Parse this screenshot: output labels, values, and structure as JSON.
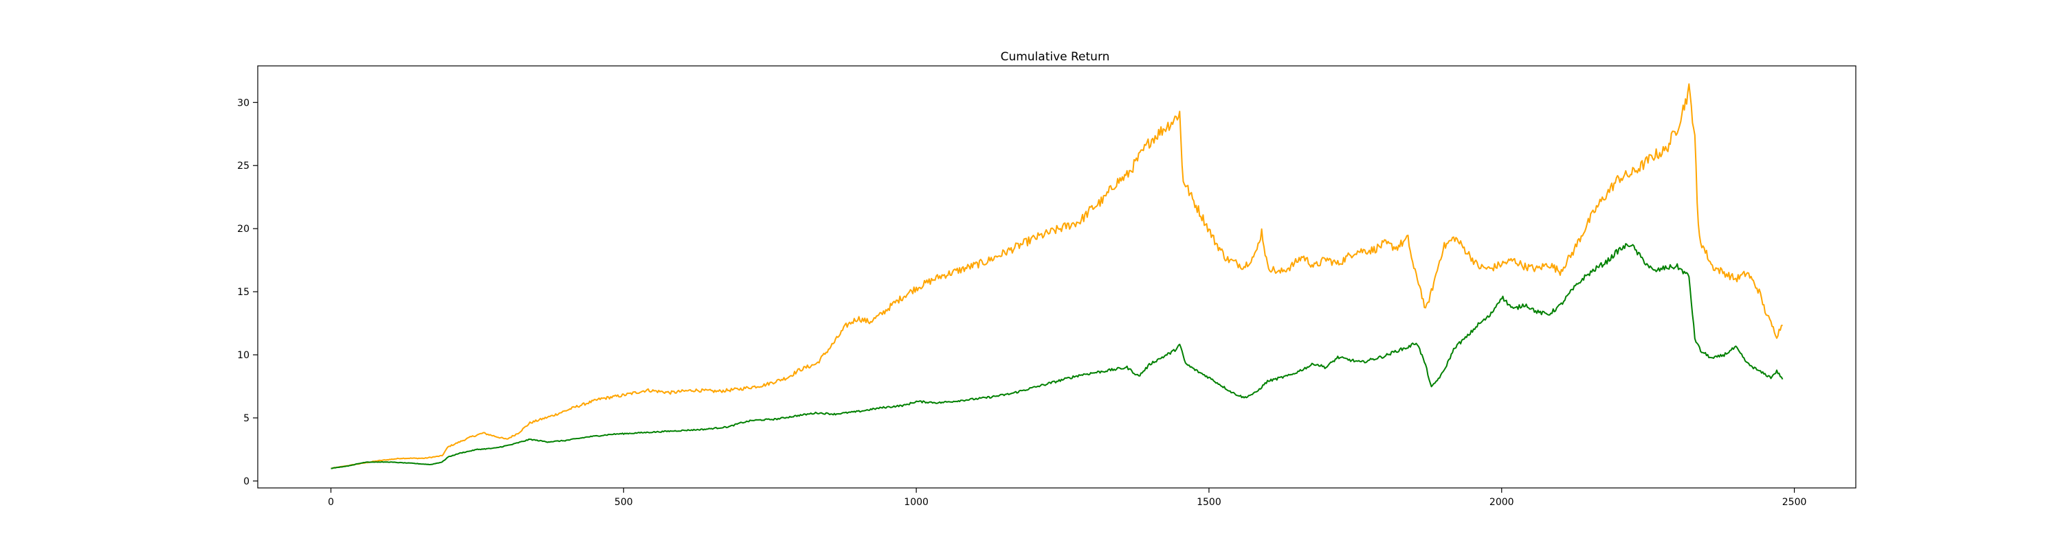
{
  "chart_data": {
    "type": "line",
    "title": "Cumulative Return",
    "xlabel": "",
    "ylabel": "",
    "xlim": [
      -125,
      2605
    ],
    "ylim": [
      -0.55,
      32.9
    ],
    "x_ticks": [
      0,
      500,
      1000,
      1500,
      2000,
      2500
    ],
    "x_tick_labels": [
      "0",
      "500",
      "1000",
      "1500",
      "2000",
      "2500"
    ],
    "y_ticks": [
      0,
      5,
      10,
      15,
      20,
      25,
      30
    ],
    "y_tick_labels": [
      "0",
      "5",
      "10",
      "15",
      "20",
      "25",
      "30"
    ],
    "grid": false,
    "legend": "none",
    "series": [
      {
        "color": "#ffa500",
        "x": [
          0,
          40,
          80,
          120,
          160,
          190,
          200,
          240,
          260,
          300,
          320,
          340,
          380,
          420,
          460,
          500,
          540,
          580,
          620,
          660,
          700,
          740,
          780,
          800,
          830,
          860,
          880,
          900,
          920,
          940,
          960,
          980,
          1000,
          1040,
          1080,
          1120,
          1160,
          1200,
          1240,
          1280,
          1300,
          1320,
          1340,
          1360,
          1380,
          1400,
          1420,
          1440,
          1450,
          1455,
          1470,
          1490,
          1510,
          1530,
          1560,
          1580,
          1590,
          1600,
          1620,
          1640,
          1660,
          1680,
          1700,
          1720,
          1750,
          1780,
          1800,
          1820,
          1840,
          1850,
          1860,
          1870,
          1880,
          1900,
          1920,
          1940,
          1960,
          1980,
          2000,
          2020,
          2040,
          2060,
          2080,
          2100,
          2120,
          2140,
          2160,
          2180,
          2200,
          2220,
          2240,
          2260,
          2280,
          2300,
          2310,
          2320,
          2330,
          2335,
          2340,
          2360,
          2380,
          2400,
          2420,
          2440,
          2450,
          2460,
          2470,
          2480
        ],
        "y": [
          1.0,
          1.3,
          1.6,
          1.8,
          1.8,
          2.0,
          2.7,
          3.5,
          3.8,
          3.3,
          3.8,
          4.6,
          5.2,
          5.9,
          6.5,
          6.8,
          7.2,
          7.0,
          7.2,
          7.1,
          7.3,
          7.6,
          8.2,
          8.8,
          9.3,
          11.0,
          12.3,
          12.9,
          12.6,
          13.2,
          14.0,
          14.7,
          15.3,
          16.2,
          16.8,
          17.4,
          18.3,
          19.2,
          19.9,
          20.6,
          21.6,
          22.3,
          23.6,
          24.2,
          25.6,
          27.0,
          27.8,
          28.6,
          29.2,
          24.0,
          22.5,
          20.8,
          19.0,
          17.6,
          17.0,
          18.0,
          19.8,
          17.0,
          16.5,
          17.0,
          17.8,
          17.0,
          17.6,
          17.2,
          18.2,
          18.3,
          18.8,
          18.5,
          19.2,
          16.8,
          15.5,
          13.5,
          15.0,
          18.5,
          19.3,
          18.2,
          17.0,
          16.8,
          17.2,
          17.5,
          17.0,
          16.8,
          17.2,
          16.6,
          18.0,
          19.8,
          21.5,
          22.8,
          24.0,
          24.3,
          25.0,
          25.8,
          26.2,
          28.0,
          29.5,
          31.0,
          27.5,
          20.5,
          19.0,
          17.0,
          16.5,
          16.0,
          16.5,
          15.0,
          13.5,
          12.5,
          11.5,
          12.5
        ],
        "sampled": true
      },
      {
        "color": "#008000",
        "x": [
          0,
          30,
          60,
          100,
          140,
          170,
          190,
          200,
          220,
          250,
          280,
          310,
          340,
          370,
          400,
          440,
          480,
          520,
          560,
          600,
          640,
          680,
          700,
          720,
          760,
          800,
          830,
          860,
          900,
          940,
          980,
          1000,
          1040,
          1080,
          1120,
          1160,
          1200,
          1240,
          1280,
          1320,
          1360,
          1380,
          1400,
          1420,
          1440,
          1450,
          1460,
          1480,
          1500,
          1520,
          1540,
          1560,
          1580,
          1600,
          1640,
          1680,
          1700,
          1720,
          1760,
          1800,
          1820,
          1840,
          1855,
          1870,
          1880,
          1900,
          1920,
          1940,
          1960,
          1980,
          2000,
          2020,
          2040,
          2060,
          2080,
          2100,
          2120,
          2140,
          2160,
          2180,
          2200,
          2220,
          2240,
          2260,
          2280,
          2300,
          2320,
          2330,
          2340,
          2360,
          2380,
          2400,
          2420,
          2440,
          2460,
          2470,
          2480
        ],
        "y": [
          1.0,
          1.2,
          1.5,
          1.5,
          1.4,
          1.3,
          1.5,
          1.9,
          2.2,
          2.5,
          2.6,
          2.9,
          3.3,
          3.1,
          3.2,
          3.5,
          3.7,
          3.8,
          3.9,
          4.0,
          4.1,
          4.3,
          4.6,
          4.8,
          4.9,
          5.2,
          5.4,
          5.3,
          5.5,
          5.8,
          6.0,
          6.3,
          6.2,
          6.4,
          6.6,
          6.9,
          7.4,
          7.9,
          8.4,
          8.7,
          9.0,
          8.3,
          9.3,
          9.8,
          10.3,
          10.8,
          9.3,
          8.7,
          8.2,
          7.6,
          7.0,
          6.6,
          7.0,
          7.9,
          8.4,
          9.3,
          9.0,
          9.8,
          9.4,
          9.9,
          10.3,
          10.6,
          11.0,
          9.2,
          7.4,
          8.6,
          10.6,
          11.4,
          12.4,
          13.1,
          14.6,
          13.6,
          14.0,
          13.4,
          13.2,
          13.9,
          15.1,
          16.1,
          16.8,
          17.4,
          18.3,
          18.8,
          17.6,
          16.6,
          16.9,
          17.0,
          16.2,
          11.3,
          10.3,
          9.7,
          10.0,
          10.6,
          9.3,
          8.7,
          8.2,
          8.7,
          8.1
        ],
        "sampled": true
      }
    ]
  }
}
